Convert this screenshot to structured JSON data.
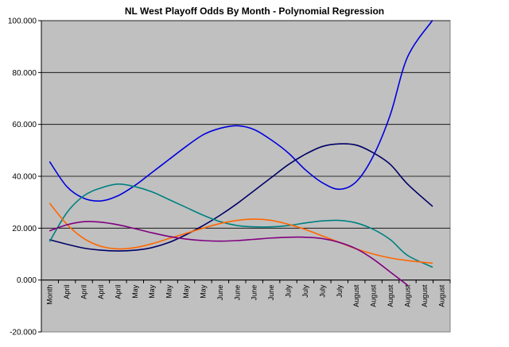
{
  "chart_data": {
    "type": "line",
    "title": "NL West Playoff Odds By Month - Polynomial Regression",
    "xlabel": "",
    "ylabel": "",
    "ylim": [
      -20,
      100
    ],
    "yticks": [
      -20,
      0,
      20,
      40,
      60,
      80,
      100
    ],
    "ytick_labels": [
      "-20.000",
      "0.000",
      "20.000",
      "40.000",
      "60.000",
      "80.000",
      "100.000"
    ],
    "grid": "horizontal",
    "plot_background": "#c0c0c0",
    "categories": [
      "Month",
      "April",
      "April",
      "April",
      "April",
      "May",
      "May",
      "May",
      "May",
      "May",
      "June",
      "June",
      "June",
      "June",
      "July",
      "July",
      "July",
      "July",
      "August",
      "August",
      "August",
      "August",
      "August",
      "August"
    ],
    "series": [
      {
        "color": "#0000dd",
        "values": [
          45.5,
          36,
          31.5,
          30.5,
          32.5,
          36.5,
          41.5,
          46.5,
          51.5,
          56,
          58.5,
          59.5,
          58,
          54,
          49,
          42.5,
          37.5,
          35,
          38,
          48,
          64,
          86,
          101,
          null
        ]
      },
      {
        "color": "#000066",
        "values": [
          15.5,
          13.8,
          12.3,
          11.5,
          11.2,
          11.5,
          12.5,
          14.5,
          17.5,
          21,
          25,
          29.5,
          34.5,
          39.5,
          44.5,
          48.5,
          51.5,
          52.5,
          52,
          49,
          44.5,
          37,
          28.5,
          null
        ]
      },
      {
        "color": "#008080",
        "values": [
          15,
          26,
          32.5,
          35.5,
          37,
          36,
          34,
          31,
          28,
          25,
          22.5,
          21,
          20.5,
          20.5,
          21,
          22,
          22.8,
          23,
          22,
          19.5,
          15.5,
          9.5,
          5,
          null
        ]
      },
      {
        "color": "#ff6600",
        "values": [
          29.5,
          21.5,
          16,
          13,
          12,
          12.5,
          14,
          16,
          18,
          20,
          21.8,
          23,
          23.5,
          23,
          21.5,
          19.5,
          17,
          14.5,
          12,
          10,
          8.5,
          7.5,
          6.5,
          null
        ]
      },
      {
        "color": "#800080",
        "values": [
          19,
          21.3,
          22.5,
          22.3,
          21.3,
          19.8,
          18.2,
          16.8,
          15.8,
          15.2,
          15,
          15.2,
          15.7,
          16.2,
          16.5,
          16.5,
          16,
          14.5,
          12,
          8,
          3,
          -2,
          null,
          null
        ]
      }
    ]
  }
}
